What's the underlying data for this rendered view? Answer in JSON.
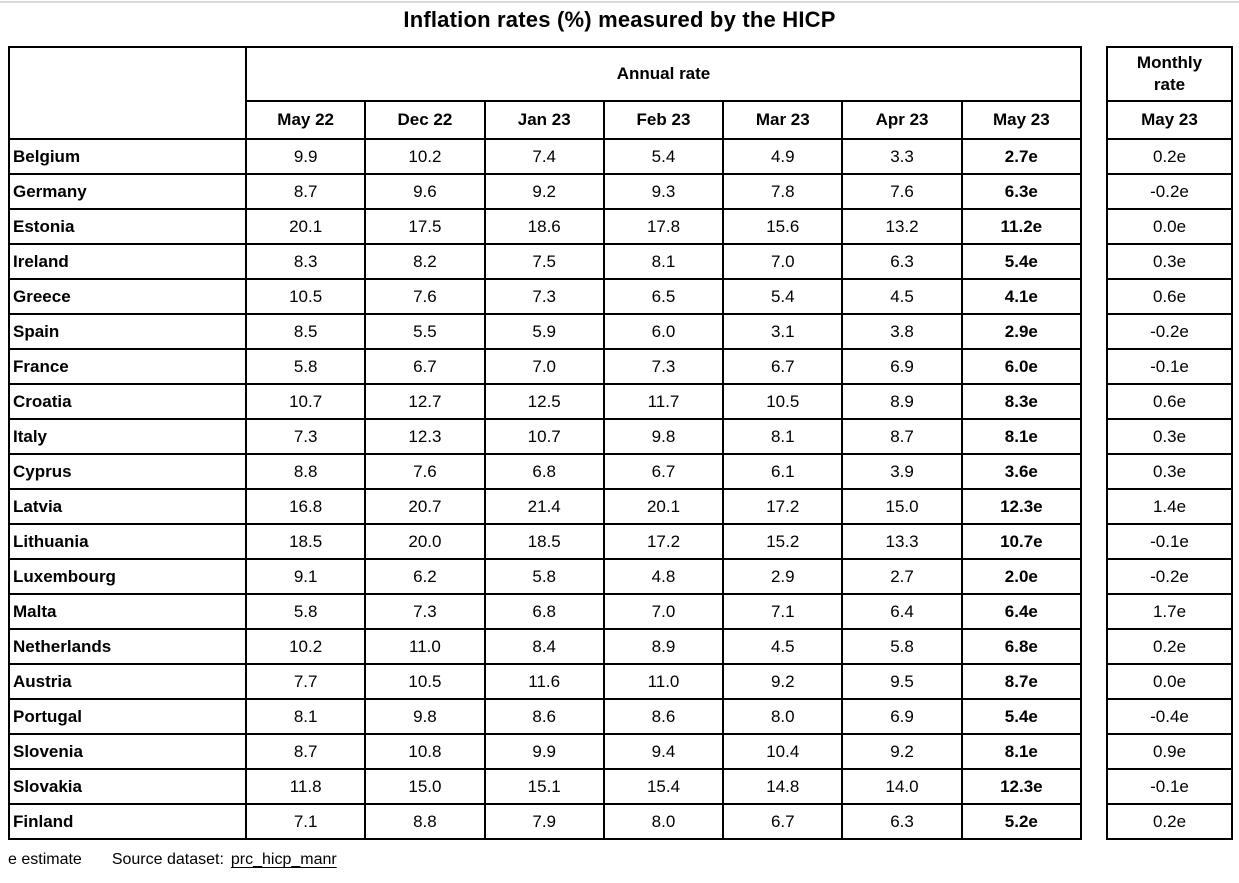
{
  "chart_data": {
    "type": "table",
    "title": "Inflation rates (%) measured by the HICP",
    "annual_group_label": "Annual rate",
    "monthly_group_label": "Monthly rate",
    "monthly_column": "May 23",
    "columns": [
      "May 22",
      "Dec 22",
      "Jan 23",
      "Feb 23",
      "Mar 23",
      "Apr 23",
      "May 23"
    ],
    "rows": [
      {
        "country": "Belgium",
        "annual": [
          "9.9",
          "10.2",
          "7.4",
          "5.4",
          "4.9",
          "3.3",
          "2.7e"
        ],
        "monthly": "0.2e"
      },
      {
        "country": "Germany",
        "annual": [
          "8.7",
          "9.6",
          "9.2",
          "9.3",
          "7.8",
          "7.6",
          "6.3e"
        ],
        "monthly": "-0.2e"
      },
      {
        "country": "Estonia",
        "annual": [
          "20.1",
          "17.5",
          "18.6",
          "17.8",
          "15.6",
          "13.2",
          "11.2e"
        ],
        "monthly": "0.0e"
      },
      {
        "country": "Ireland",
        "annual": [
          "8.3",
          "8.2",
          "7.5",
          "8.1",
          "7.0",
          "6.3",
          "5.4e"
        ],
        "monthly": "0.3e"
      },
      {
        "country": "Greece",
        "annual": [
          "10.5",
          "7.6",
          "7.3",
          "6.5",
          "5.4",
          "4.5",
          "4.1e"
        ],
        "monthly": "0.6e"
      },
      {
        "country": "Spain",
        "annual": [
          "8.5",
          "5.5",
          "5.9",
          "6.0",
          "3.1",
          "3.8",
          "2.9e"
        ],
        "monthly": "-0.2e"
      },
      {
        "country": "France",
        "annual": [
          "5.8",
          "6.7",
          "7.0",
          "7.3",
          "6.7",
          "6.9",
          "6.0e"
        ],
        "monthly": "-0.1e"
      },
      {
        "country": "Croatia",
        "annual": [
          "10.7",
          "12.7",
          "12.5",
          "11.7",
          "10.5",
          "8.9",
          "8.3e"
        ],
        "monthly": "0.6e"
      },
      {
        "country": "Italy",
        "annual": [
          "7.3",
          "12.3",
          "10.7",
          "9.8",
          "8.1",
          "8.7",
          "8.1e"
        ],
        "monthly": "0.3e"
      },
      {
        "country": "Cyprus",
        "annual": [
          "8.8",
          "7.6",
          "6.8",
          "6.7",
          "6.1",
          "3.9",
          "3.6e"
        ],
        "monthly": "0.3e"
      },
      {
        "country": "Latvia",
        "annual": [
          "16.8",
          "20.7",
          "21.4",
          "20.1",
          "17.2",
          "15.0",
          "12.3e"
        ],
        "monthly": "1.4e"
      },
      {
        "country": "Lithuania",
        "annual": [
          "18.5",
          "20.0",
          "18.5",
          "17.2",
          "15.2",
          "13.3",
          "10.7e"
        ],
        "monthly": "-0.1e"
      },
      {
        "country": "Luxembourg",
        "annual": [
          "9.1",
          "6.2",
          "5.8",
          "4.8",
          "2.9",
          "2.7",
          "2.0e"
        ],
        "monthly": "-0.2e"
      },
      {
        "country": "Malta",
        "annual": [
          "5.8",
          "7.3",
          "6.8",
          "7.0",
          "7.1",
          "6.4",
          "6.4e"
        ],
        "monthly": "1.7e"
      },
      {
        "country": "Netherlands",
        "annual": [
          "10.2",
          "11.0",
          "8.4",
          "8.9",
          "4.5",
          "5.8",
          "6.8e"
        ],
        "monthly": "0.2e"
      },
      {
        "country": "Austria",
        "annual": [
          "7.7",
          "10.5",
          "11.6",
          "11.0",
          "9.2",
          "9.5",
          "8.7e"
        ],
        "monthly": "0.0e"
      },
      {
        "country": "Portugal",
        "annual": [
          "8.1",
          "9.8",
          "8.6",
          "8.6",
          "8.0",
          "6.9",
          "5.4e"
        ],
        "monthly": "-0.4e"
      },
      {
        "country": "Slovenia",
        "annual": [
          "8.7",
          "10.8",
          "9.9",
          "9.4",
          "10.4",
          "9.2",
          "8.1e"
        ],
        "monthly": "0.9e"
      },
      {
        "country": "Slovakia",
        "annual": [
          "11.8",
          "15.0",
          "15.1",
          "15.4",
          "14.8",
          "14.0",
          "12.3e"
        ],
        "monthly": "-0.1e"
      },
      {
        "country": "Finland",
        "annual": [
          "7.1",
          "8.8",
          "7.9",
          "8.0",
          "6.7",
          "6.3",
          "5.2e"
        ],
        "monthly": "0.2e"
      }
    ]
  },
  "footer": {
    "estimate_note": "e estimate",
    "source_label": "Source dataset:",
    "source_link_text": "prc_hicp_manr"
  }
}
